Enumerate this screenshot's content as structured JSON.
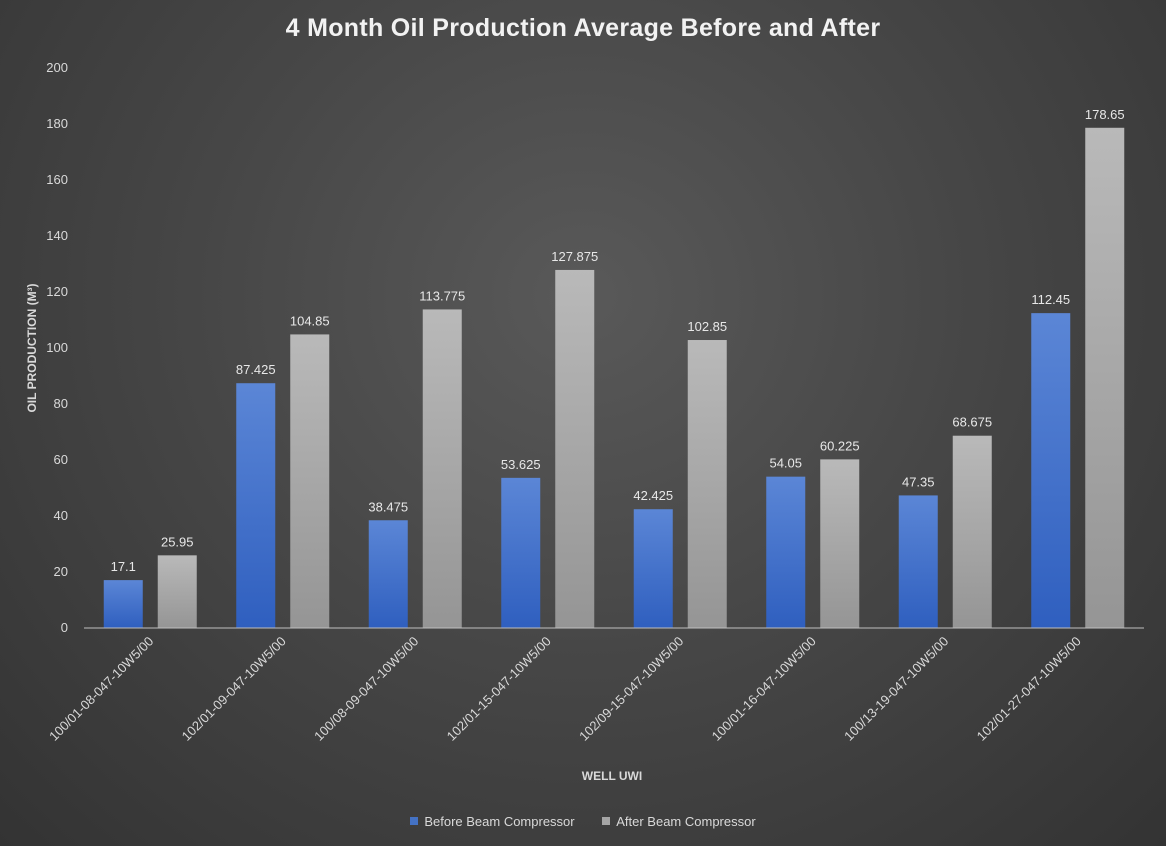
{
  "chart_data": {
    "type": "bar",
    "title": "4 Month Oil Production Average Before and After",
    "xlabel": "WELL UWI",
    "ylabel": "OIL PRODUCTION (M³)",
    "ylim": [
      0,
      200
    ],
    "yticks": [
      0,
      20,
      40,
      60,
      80,
      100,
      120,
      140,
      160,
      180,
      200
    ],
    "grid": false,
    "legend_position": "bottom",
    "categories": [
      "100/01-08-047-10W5/00",
      "102/01-09-047-10W5/00",
      "100/08-09-047-10W5/00",
      "102/01-15-047-10W5/00",
      "102/09-15-047-10W5/00",
      "100/01-16-047-10W5/00",
      "100/13-19-047-10W5/00",
      "102/01-27-047-10W5/00"
    ],
    "series": [
      {
        "name": "Before Beam Compressor",
        "color": "#4472c4",
        "values": [
          17.1,
          87.425,
          38.475,
          53.625,
          42.425,
          54.05,
          47.35,
          112.45
        ],
        "labels": [
          "17.1",
          "87.425",
          "38.475",
          "53.625",
          "42.425",
          "54.05",
          "47.35",
          "112.45"
        ]
      },
      {
        "name": "After Beam Compressor",
        "color": "#a5a5a5",
        "values": [
          25.95,
          104.85,
          113.775,
          127.875,
          102.85,
          60.225,
          68.675,
          178.65
        ],
        "labels": [
          "25.95",
          "104.85",
          "113.775",
          "127.875",
          "102.85",
          "60.225",
          "68.675",
          "178.65"
        ]
      }
    ]
  }
}
